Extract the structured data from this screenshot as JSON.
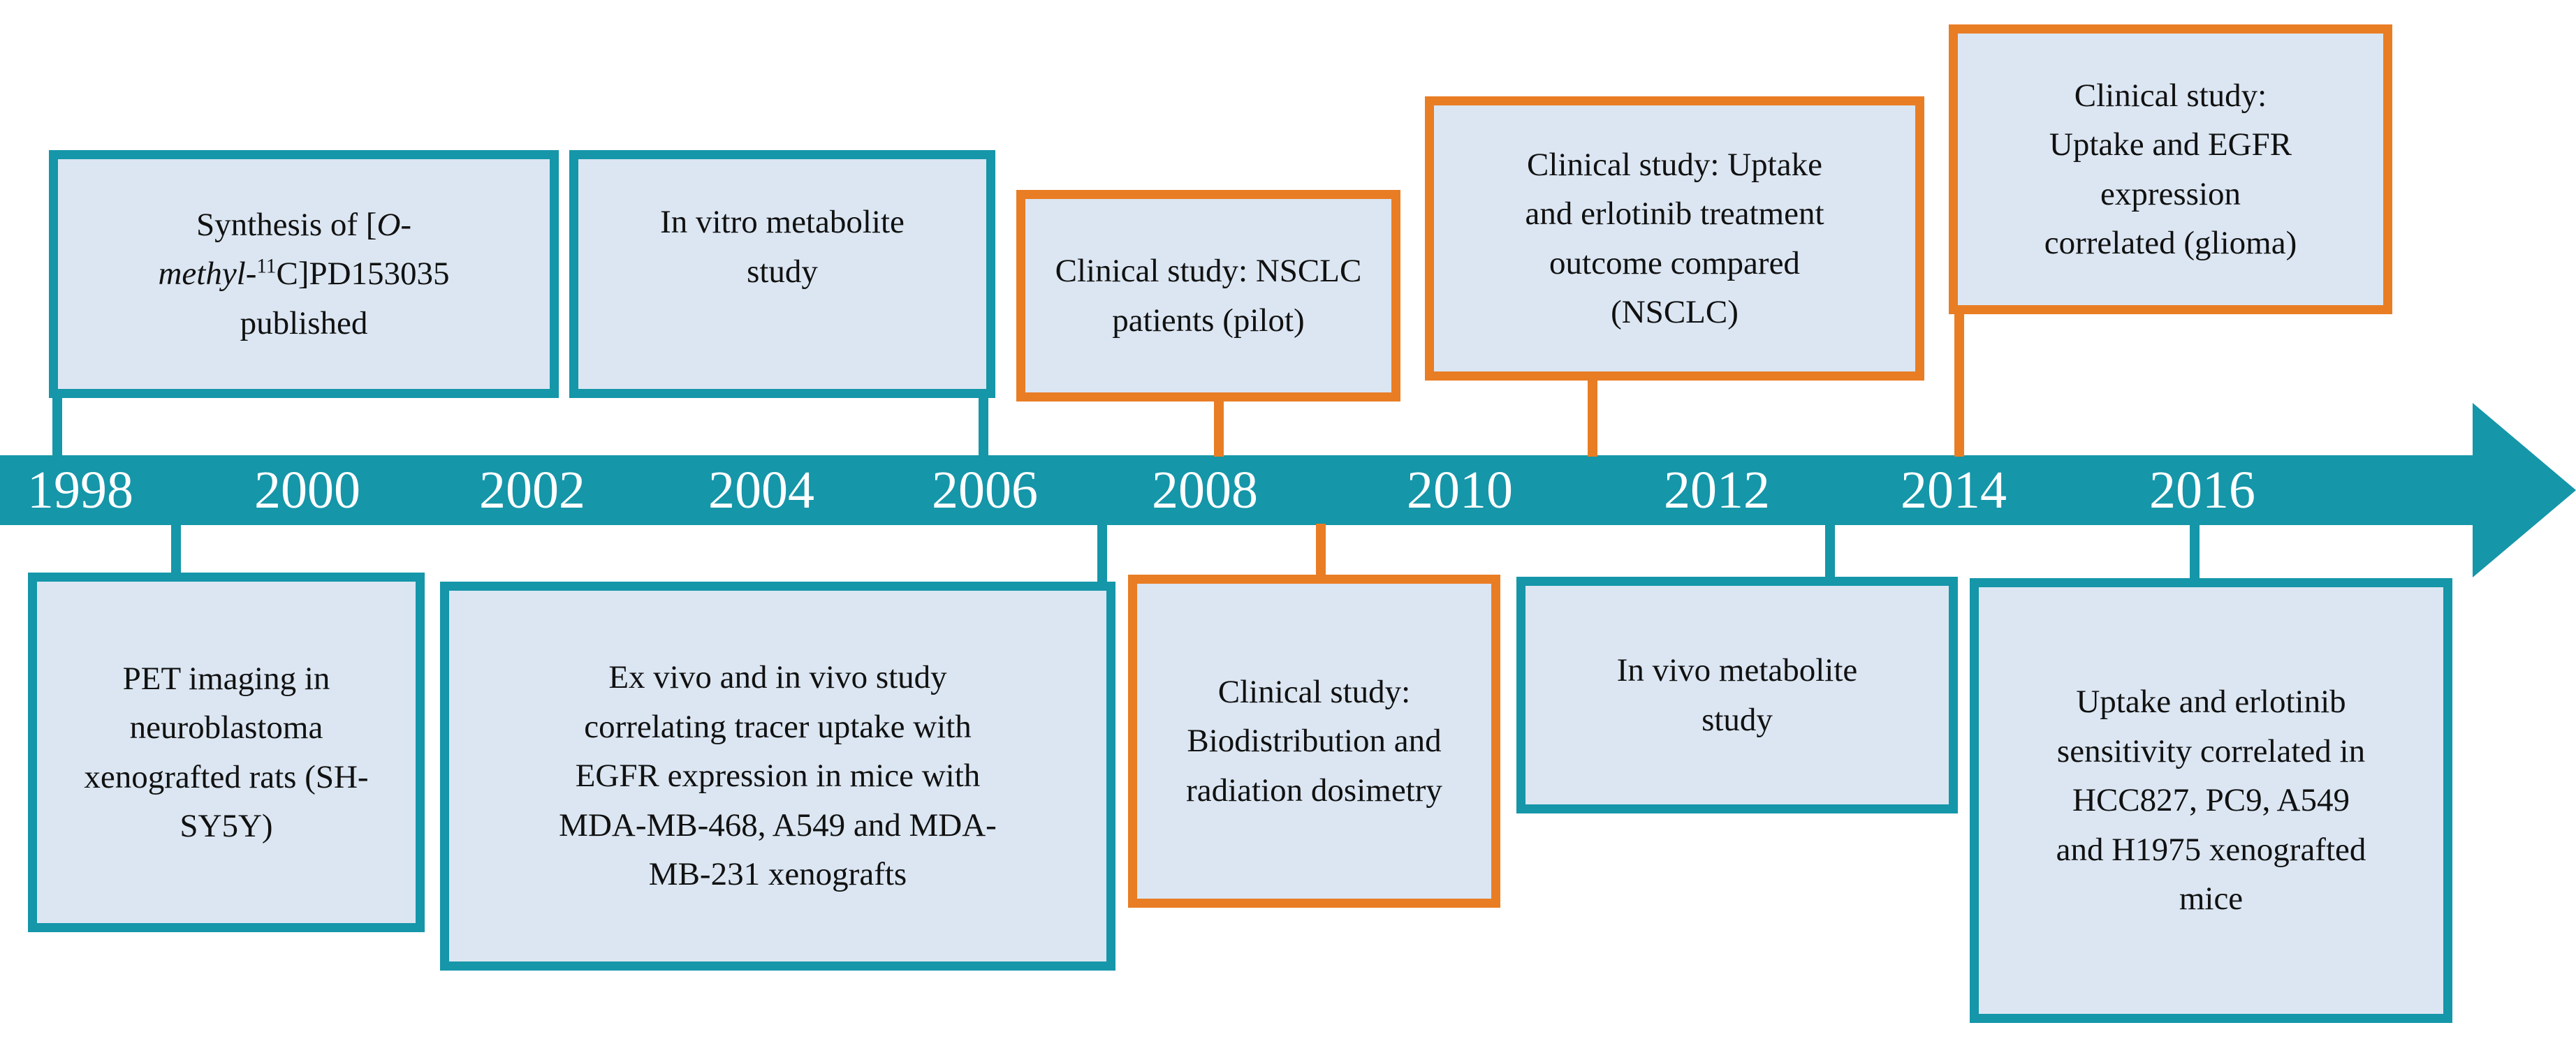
{
  "figure": {
    "type": "timeline",
    "description": "Research timeline of the PET tracer [O-methyl-11C]PD153035, 1998-2016, preclinical (teal) and clinical (orange) milestones"
  },
  "colors": {
    "teal": "#1596a9",
    "orange": "#e97d24",
    "box_fill": "#dbe6f2",
    "year_text": "#ffffff",
    "body_text": "#111111"
  },
  "timeline": {
    "years": [
      "1998",
      "2000",
      "2002",
      "2004",
      "2006",
      "2008",
      "2010",
      "2012",
      "2014",
      "2016"
    ]
  },
  "events_above": [
    {
      "text": "Synthesis of [O-methyl-11C]PD153035 published",
      "border": "teal",
      "segments": [
        {
          "t": "Synthesis of ["
        },
        {
          "t": "O-",
          "style": "italic"
        },
        {
          "style": "br"
        },
        {
          "t": "methyl",
          "style": "italic"
        },
        {
          "t": "-"
        },
        {
          "t": "11",
          "style": "super"
        },
        {
          "t": "C]PD153035"
        },
        {
          "style": "br"
        },
        {
          "t": "published"
        }
      ]
    },
    {
      "text": "In vitro metabolite study",
      "border": "teal"
    },
    {
      "text": "Clinical study: NSCLC patients (pilot)",
      "border": "orange"
    },
    {
      "text": "Clinical study: Uptake and erlotinib treatment outcome compared (NSCLC)",
      "border": "orange"
    },
    {
      "text": "Clinical study: Uptake and EGFR expression correlated (glioma)",
      "border": "orange"
    }
  ],
  "events_below": [
    {
      "text": "PET imaging in neuroblastoma xenografted rats (SH-SY5Y)",
      "border": "teal"
    },
    {
      "text": "Ex vivo and in vivo study correlating tracer uptake with EGFR expression in mice with MDA-MB-468, A549 and MDA-MB-231 xenografts",
      "border": "teal"
    },
    {
      "text": "Clinical study: Biodistribution and radiation dosimetry",
      "border": "orange"
    },
    {
      "text": "In vivo metabolite study",
      "border": "teal"
    },
    {
      "text": "Uptake and erlotinib sensitivity correlated in HCC827, PC9, A549 and H1975 xenografted mice",
      "border": "teal"
    }
  ]
}
